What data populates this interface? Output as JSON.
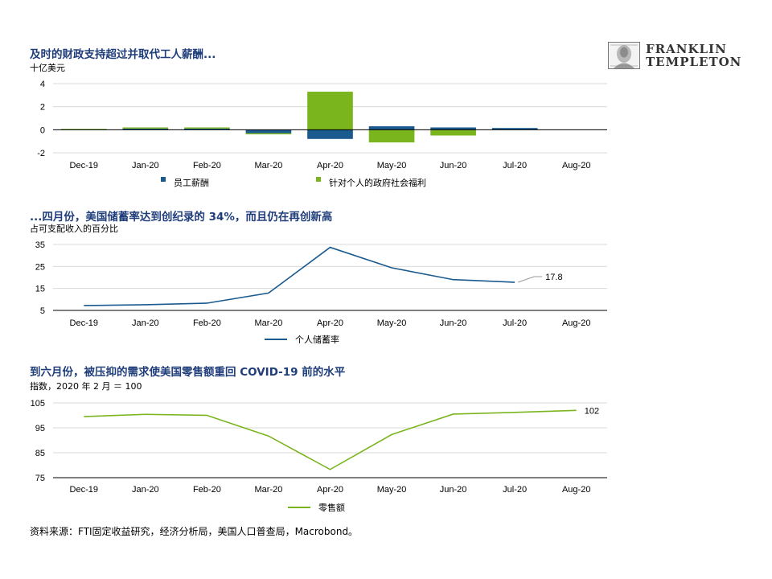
{
  "logo": {
    "line1": "FRANKLIN",
    "line2": "TEMPLETON",
    "icon": "benjamin-franklin-portrait-icon"
  },
  "colors": {
    "title": "#1f3d7a",
    "navy": "#1a5a8e",
    "green": "#7ab51d",
    "grid": "#d9d9d9",
    "axis": "#000000"
  },
  "source": "资料来源：FTI固定收益研究，经济分析局，美国人口普查局，Macrobond。",
  "chart_data": [
    {
      "type": "bar",
      "title": "及时的财政支持超过并取代工人薪酬...",
      "ylabel": "十亿美元",
      "categories": [
        "Dec-19",
        "Jan-20",
        "Feb-20",
        "Mar-20",
        "Apr-20",
        "May-20",
        "Jun-20",
        "Jul-20",
        "Aug-20"
      ],
      "ylim": [
        -2,
        4
      ],
      "yticks": [
        "4",
        "2",
        "0",
        "-2"
      ],
      "stacked": true,
      "grid": true,
      "legend_position": "bottom",
      "series": [
        {
          "name": "员工薪酬",
          "color": "#1a5a8e",
          "values": [
            0.05,
            0.1,
            0.1,
            -0.3,
            -0.8,
            0.3,
            0.2,
            0.15,
            0
          ]
        },
        {
          "name": "针对个人的政府社会福利",
          "color": "#7ab51d",
          "values": [
            0.02,
            0.1,
            0.1,
            -0.1,
            3.3,
            -1.1,
            -0.5,
            0,
            0
          ]
        }
      ]
    },
    {
      "type": "line",
      "title": "...四月份，美国储蓄率达到创纪录的 34%，而且仍在再创新高",
      "ylabel": "占可支配收入的百分比",
      "categories": [
        "Dec-19",
        "Jan-20",
        "Feb-20",
        "Mar-20",
        "Apr-20",
        "May-20",
        "Jun-20",
        "Jul-20",
        "Aug-20"
      ],
      "ylim": [
        5,
        35
      ],
      "yticks": [
        "35",
        "25",
        "15",
        "5"
      ],
      "grid": true,
      "legend_position": "bottom",
      "series": [
        {
          "name": "个人储蓄率",
          "color": "#1a5a8e",
          "values": [
            7.2,
            7.6,
            8.3,
            12.9,
            33.7,
            24.4,
            19.0,
            17.8,
            null
          ]
        }
      ],
      "annotation": "17.8"
    },
    {
      "type": "line",
      "title": "到六月份，被压抑的需求使美国零售额重回 COVID-19 前的水平",
      "ylabel": "指数，2020 年 2 月 ＝ 100",
      "categories": [
        "Dec-19",
        "Jan-20",
        "Feb-20",
        "Mar-20",
        "Apr-20",
        "May-20",
        "Jun-20",
        "Jul-20",
        "Aug-20"
      ],
      "ylim": [
        75,
        105
      ],
      "yticks": [
        "105",
        "95",
        "85",
        "75"
      ],
      "grid": true,
      "legend_position": "bottom",
      "series": [
        {
          "name": "零售额",
          "color": "#7ab51d",
          "values": [
            99.5,
            100.4,
            100,
            91.7,
            78.3,
            92.3,
            100.5,
            101.2,
            102
          ]
        }
      ],
      "annotation": "102"
    }
  ]
}
